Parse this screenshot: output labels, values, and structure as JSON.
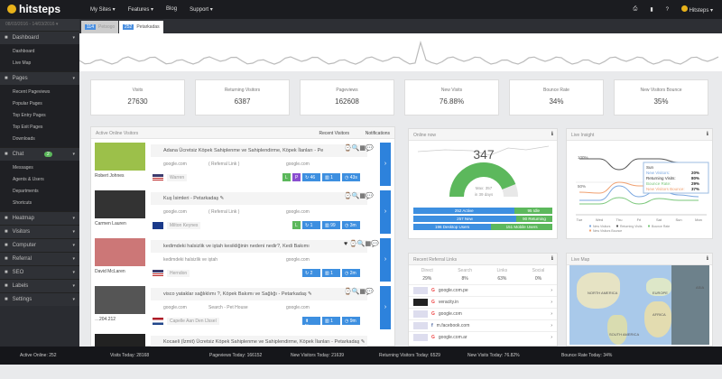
{
  "topbar": {
    "brand": "hitsteps",
    "nav": [
      "My Sites ▾",
      "Features ▾",
      "Blog",
      "Support ▾"
    ],
    "user": "Hitsteps ▾",
    "icons": [
      "print-icon",
      "book-icon",
      "help-icon"
    ]
  },
  "sidebar": {
    "date_range": "08/03/2016 - 14/03/2016 ▾",
    "sections": [
      {
        "label": "Dashboard",
        "icon": "home-icon",
        "items": [
          "Dashboard",
          "Live Map"
        ]
      },
      {
        "label": "Pages",
        "icon": "file-icon",
        "items": [
          "Recent Pageviews",
          "Popular Pages",
          "Top Entry Pages",
          "Top Exit Pages",
          "Downloads"
        ]
      },
      {
        "label": "Chat",
        "icon": "chat-icon",
        "badge": "2",
        "items": [
          "Messages",
          "Agents & Users",
          "Departments",
          "Shortcuts"
        ]
      },
      {
        "label": "Heatmap",
        "icon": "heatmap-icon",
        "items": []
      },
      {
        "label": "Visitors",
        "icon": "users-icon",
        "items": []
      },
      {
        "label": "Computer",
        "icon": "monitor-icon",
        "items": []
      },
      {
        "label": "Referral",
        "icon": "link-icon",
        "items": []
      },
      {
        "label": "SEO",
        "icon": "search-icon",
        "items": []
      },
      {
        "label": "Labels",
        "icon": "tag-icon",
        "items": []
      },
      {
        "label": "Settings",
        "icon": "gear-icon",
        "items": []
      }
    ]
  },
  "tabs": [
    {
      "count": "114",
      "label": "Petsogo"
    },
    {
      "count": "252",
      "label": "Petarkadas"
    }
  ],
  "stats": [
    {
      "label": "Visits",
      "value": "27630"
    },
    {
      "label": "Returning Visitors",
      "value": "6387"
    },
    {
      "label": "Pageviews",
      "value": "162608"
    },
    {
      "label": "New Visits",
      "value": "76.88%"
    },
    {
      "label": "Bounce Rate",
      "value": "34%"
    },
    {
      "label": "New Visitors Bounce",
      "value": "35%"
    }
  ],
  "visitors": {
    "title": "Active Online Visitors",
    "tabs": [
      "Recent Visitors",
      "Notifications"
    ],
    "rows": [
      {
        "name": "Robert Johnes",
        "page": "Adana Ücretsiz Köpek Sahiplenme ve Sahiplendirme, Köpek İlanları - Pe",
        "ref": "google.com",
        "ref_type": "( Referral Link )",
        "src": "google.com",
        "city": "Warren",
        "flag": "us",
        "buttons": [
          "L",
          "P",
          "↻ 46",
          "▥ 1",
          "◷ 43s"
        ]
      },
      {
        "name": "Carmen Lauren",
        "page": "Kuş İsimleri - Petarkadaş ✎",
        "ref": "google.com",
        "ref_type": "( Referral Link )",
        "src": "google.com",
        "city": "Milton Keynes",
        "flag": "uk",
        "buttons": [
          "L",
          "↻ 1",
          "▥ 99",
          "◷ 3m"
        ]
      },
      {
        "name": "David McLaren",
        "page": "kedimdeki halsizlik ve iştah kesikliğinin nedeni nedir?, Kedi Bakımı",
        "ref": "kedimdeki halsizlik ve iştah",
        "ref_type": "",
        "src": "google.com",
        "city": "Herndon",
        "flag": "us",
        "buttons": [
          "↻ 2",
          "▥ 1",
          "◷ 2m"
        ]
      },
      {
        "name": "…204.212",
        "page": "visco yataklar sağlıklımı ?, Köpek Bakımı ve Sağlığı - Petarkadaş ✎",
        "ref": "google.com",
        "ref_type": "Search - Pet House",
        "src": "google.com",
        "city": "Capelle Aan Den IJssel",
        "flag": "nl",
        "buttons": [
          "⬆ New",
          "▥ 1",
          "◷ 9m"
        ]
      },
      {
        "name": "",
        "page": "Kocaeli (İzmit) Ücretsiz Köpek Sahiplenme ve Sahiplendirme, Köpek İlanları - Petarkadaş ✎",
        "ref": "",
        "ref_type": "",
        "src": "",
        "city": "",
        "flag": "",
        "buttons": []
      }
    ]
  },
  "online": {
    "title": "Online now",
    "count": "347",
    "max": "Max: 357",
    "max_days": "in 39 days",
    "gauge_fraction": 0.88,
    "bars": [
      {
        "a": "252 Active",
        "b": "95 Idle",
        "f": 0.73
      },
      {
        "a": "257 New",
        "b": "90 Returning",
        "f": 0.74
      },
      {
        "a": "196 Desktop Users",
        "b": "151 Mobile Users",
        "f": 0.56
      }
    ],
    "colors": {
      "blue": "#3d8fe0",
      "green": "#5cb85c"
    }
  },
  "insight": {
    "title": "Live Insight",
    "y_labels": [
      "100%",
      "50%"
    ],
    "days": [
      "Tue",
      "Wed",
      "Thu",
      "Fri",
      "Sat",
      "Sun",
      "Mon"
    ],
    "tooltip": {
      "day": "Sun",
      "lines": [
        {
          "k": "New Visitors:",
          "v": "20%",
          "c": "#7aa7e0"
        },
        {
          "k": "Returning Visits:",
          "v": "80%",
          "c": "#333"
        },
        {
          "k": "Bounce Rate:",
          "v": "29%",
          "c": "#7ac77a"
        },
        {
          "k": "New Visitors Bounce:",
          "v": "37%",
          "c": "#f0a070"
        }
      ]
    },
    "legend": [
      "New Visitors",
      "Returning Visits",
      "Bounce Rate",
      "New Visitors Bounce"
    ]
  },
  "referral": {
    "title": "Recent Referral Links",
    "cols": [
      {
        "k": "Direct",
        "v": "29%"
      },
      {
        "k": "Search",
        "v": "8%"
      },
      {
        "k": "Links",
        "v": "63%"
      },
      {
        "k": "Social",
        "v": "0%"
      }
    ],
    "links": [
      "google.com.pe",
      "veracity.in",
      "google.com",
      "m.facebook.com",
      "google.com.ar"
    ]
  },
  "map": {
    "title": "Live Map",
    "labels": [
      "NORTH AMERICA",
      "EUROPE",
      "AFRICA",
      "SOUTH AMERICA",
      "ASIA"
    ]
  },
  "footer": [
    "Active Online: 252",
    "Visits Today: 28168",
    "Pageviews Today: 166152",
    "New Visitors Today: 21639",
    "Returning Visitors Today: 6529",
    "New Visits Today: 76.82%",
    "Bounce Rate Today: 34%"
  ]
}
